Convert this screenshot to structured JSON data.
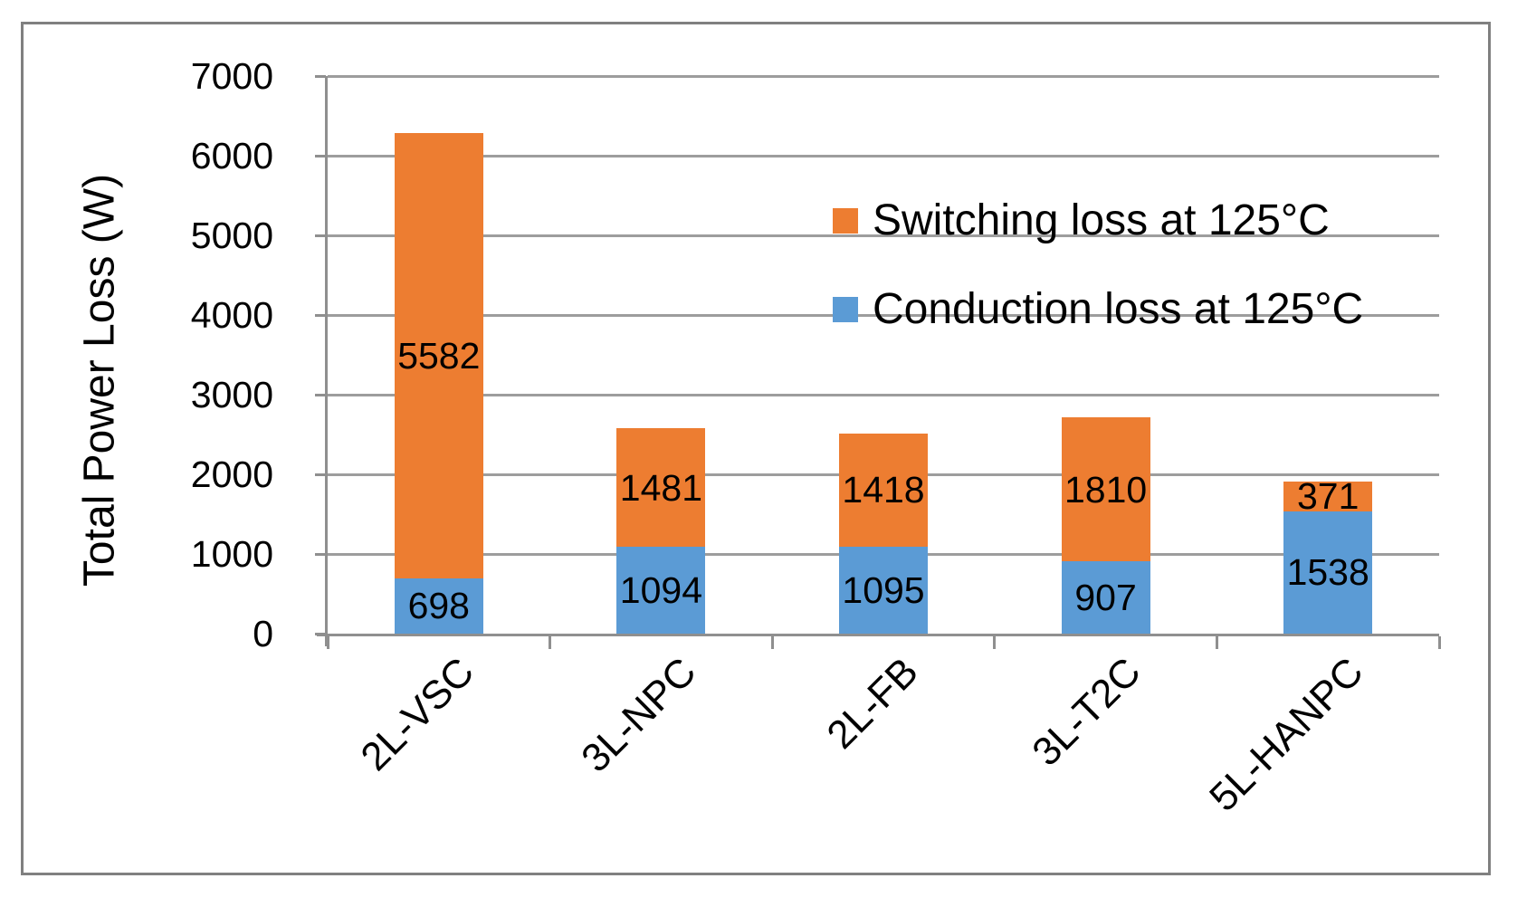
{
  "chart_data": {
    "type": "bar",
    "stacked": true,
    "title": "",
    "xlabel": "",
    "ylabel": "Total Power Loss (W)",
    "ylim": [
      0,
      7000
    ],
    "yticks": [
      0,
      1000,
      2000,
      3000,
      4000,
      5000,
      6000,
      7000
    ],
    "grid": true,
    "categories": [
      "2L-VSC",
      "3L-NPC",
      "2L-FB",
      "3L-T2C",
      "5L-HANPC"
    ],
    "series": [
      {
        "name": "Conduction loss at 125°C",
        "color": "#5B9BD5",
        "values": [
          698,
          1094,
          1095,
          907,
          1538
        ]
      },
      {
        "name": "Switching loss at 125°C",
        "color": "#ED7D31",
        "values": [
          5582,
          1481,
          1418,
          1810,
          371
        ]
      }
    ],
    "data_labels": true,
    "legend_position": "inside-upper-right",
    "legend": {
      "entries": [
        {
          "label": "Switching loss at 125°C",
          "color": "#ED7D31"
        },
        {
          "label": "Conduction loss at 125°C",
          "color": "#5B9BD5"
        }
      ]
    },
    "axis_color": "#8f8f8f",
    "gridline_color": "#9d9d9d"
  }
}
